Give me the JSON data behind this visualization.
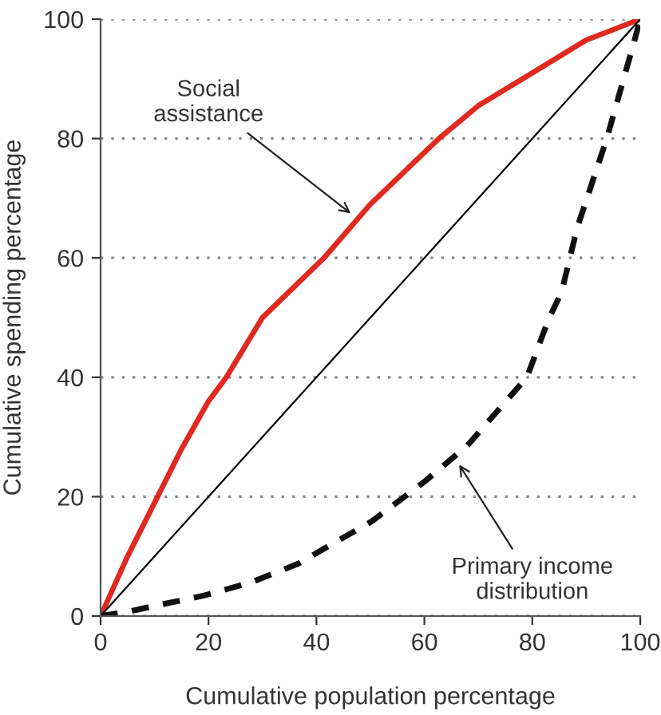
{
  "chart_data": {
    "type": "line",
    "xlabel": "Cumulative population percentage",
    "ylabel": "Cumulative spending percentage",
    "xlim": [
      0,
      100
    ],
    "ylim": [
      0,
      100
    ],
    "xticks": [
      0,
      20,
      40,
      60,
      80,
      100
    ],
    "yticks": [
      0,
      20,
      40,
      60,
      80,
      100
    ],
    "grid": "y",
    "legend": false,
    "series": [
      {
        "color": "#e0291f",
        "line_style": "solid",
        "x": [
          0,
          5,
          10,
          15,
          20,
          23.3,
          30,
          41.4,
          50,
          62.7,
          70,
          80,
          90,
          100
        ],
        "values": [
          0,
          10,
          19,
          28,
          36,
          40,
          50,
          60,
          69,
          80,
          85.5,
          91,
          96.5,
          100
        ]
      },
      {
        "color": "#000000",
        "line_style": "solid",
        "x": [
          0,
          100
        ],
        "values": [
          0,
          100
        ]
      },
      {
        "color": "#111111",
        "line_style": "dashed",
        "x": [
          0,
          5,
          10,
          19,
          27.8,
          36.7,
          40.5,
          50.3,
          60,
          68,
          79,
          83,
          85.4,
          88.3,
          93.8,
          98.8,
          100
        ],
        "values": [
          0,
          0.7,
          1.7,
          3.4,
          5.6,
          8.8,
          10.8,
          15.9,
          22.5,
          28.6,
          40,
          49.7,
          54.2,
          65,
          80,
          96,
          100
        ]
      }
    ],
    "annotations": [
      {
        "text": "Social\nassistance",
        "x": 47,
        "y": 67
      },
      {
        "text": "Primary income\ndistribution",
        "x": 66,
        "y": 26
      }
    ]
  }
}
